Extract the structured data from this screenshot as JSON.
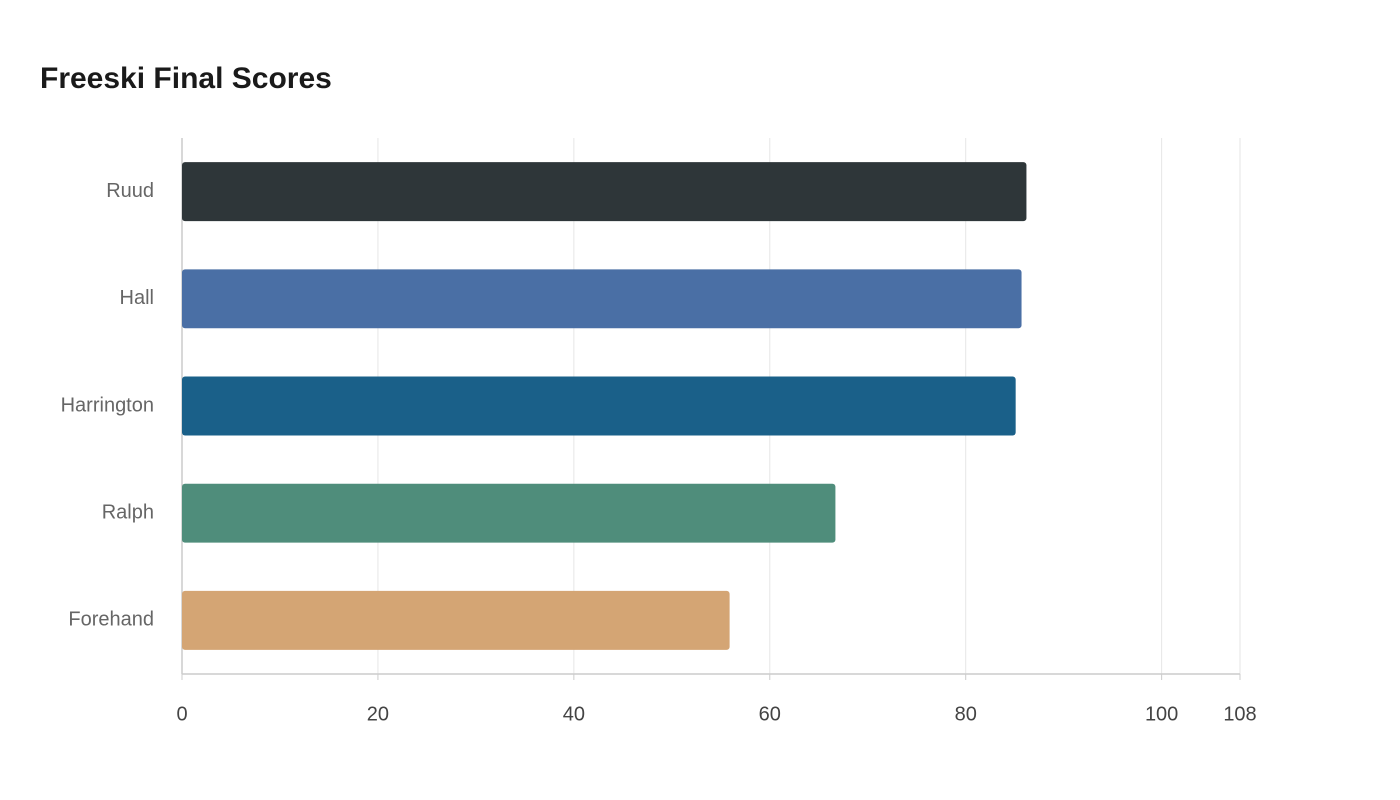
{
  "chart_data": {
    "type": "barh",
    "title": "Freeski Final Scores",
    "categories": [
      "Ruud",
      "Hall",
      "Harrington",
      "Ralph",
      "Forehand"
    ],
    "values": [
      86.2,
      85.7,
      85.1,
      66.7,
      55.9
    ],
    "colors": [
      "#2e3639",
      "#4a6fa5",
      "#1a6089",
      "#4f8d7b",
      "#d4a574"
    ],
    "xlim": [
      0,
      108
    ],
    "xticks": [
      0,
      20,
      40,
      60,
      80,
      100,
      108
    ],
    "grid": true
  }
}
